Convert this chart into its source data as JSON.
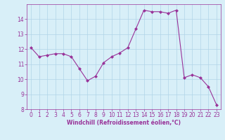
{
  "x": [
    0,
    1,
    2,
    3,
    4,
    5,
    6,
    7,
    8,
    9,
    10,
    11,
    12,
    13,
    14,
    15,
    16,
    17,
    18,
    19,
    20,
    21,
    22,
    23
  ],
  "y": [
    12.1,
    11.5,
    11.6,
    11.7,
    11.7,
    11.5,
    10.7,
    9.9,
    10.2,
    11.1,
    11.5,
    11.75,
    12.1,
    13.35,
    14.6,
    14.5,
    14.5,
    14.4,
    14.6,
    10.1,
    10.3,
    10.1,
    9.5,
    8.3
  ],
  "line_color": "#993399",
  "marker": "D",
  "marker_size": 2,
  "bg_color": "#d8eff8",
  "grid_color": "#b0d4e8",
  "xlabel": "Windchill (Refroidissement éolien,°C)",
  "xlabel_color": "#993399",
  "tick_color": "#993399",
  "label_fontsize": 5.5,
  "xlabel_fontsize": 5.5,
  "ylim": [
    8,
    15
  ],
  "xlim": [
    -0.5,
    23.5
  ],
  "yticks": [
    8,
    9,
    10,
    11,
    12,
    13,
    14
  ],
  "xticks": [
    0,
    1,
    2,
    3,
    4,
    5,
    6,
    7,
    8,
    9,
    10,
    11,
    12,
    13,
    14,
    15,
    16,
    17,
    18,
    19,
    20,
    21,
    22,
    23
  ]
}
